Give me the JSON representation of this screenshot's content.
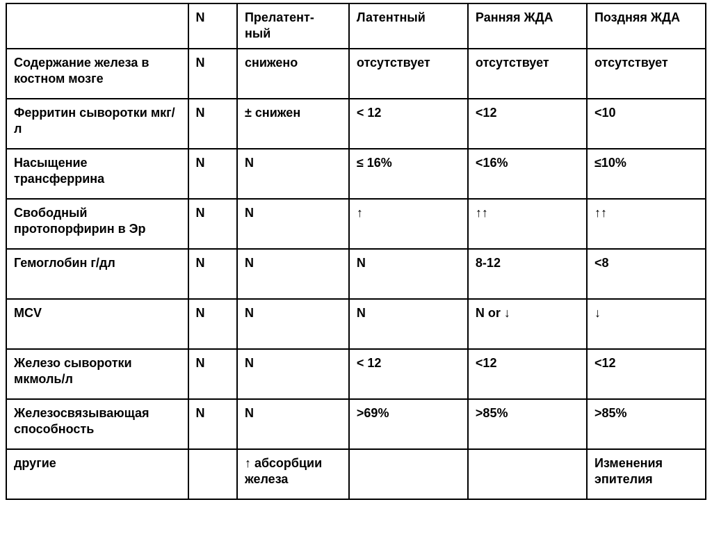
{
  "table": {
    "type": "table",
    "background_color": "#ffffff",
    "border_color": "#000000",
    "border_width": 2,
    "text_color": "#000000",
    "font_size_pt": 14,
    "font_weight": "bold",
    "font_family": "Arial",
    "column_widths_pct": [
      26,
      7,
      16,
      17,
      17,
      17
    ],
    "columns": [
      "",
      "N",
      "Прелатент-\nный",
      "Латентный",
      "Ранняя ЖДА",
      "Поздняя ЖДА"
    ],
    "rows": [
      [
        "Содержание железа в костном мозге",
        "N",
        "снижено",
        "отсутствует",
        "отсутствует",
        "отсутствует"
      ],
      [
        "Ферритин сыворотки мкг/л",
        "N",
        "± снижен",
        "< 12",
        "<12",
        "<10"
      ],
      [
        "Насыщение трансферрина",
        "N",
        "N",
        "≤ 16%",
        "<16%",
        "≤10%"
      ],
      [
        "Свободный протопорфирин в Эр",
        "N",
        "N",
        "↑",
        "↑↑",
        "↑↑"
      ],
      [
        "Гемоглобин г/дл",
        "N",
        "N",
        "N",
        "8-12",
        "<8"
      ],
      [
        "MCV",
        "N",
        "N",
        "N",
        "N or ↓",
        "↓"
      ],
      [
        "Железо сыворотки мкмоль/л",
        "N",
        "N",
        "< 12",
        "<12",
        "<12"
      ],
      [
        "Железосвязывающая способность",
        "N",
        "N",
        ">69%",
        ">85%",
        ">85%"
      ],
      [
        "другие",
        "",
        "↑ абсорбции железа",
        "",
        "",
        "Изменения эпителия"
      ]
    ]
  }
}
